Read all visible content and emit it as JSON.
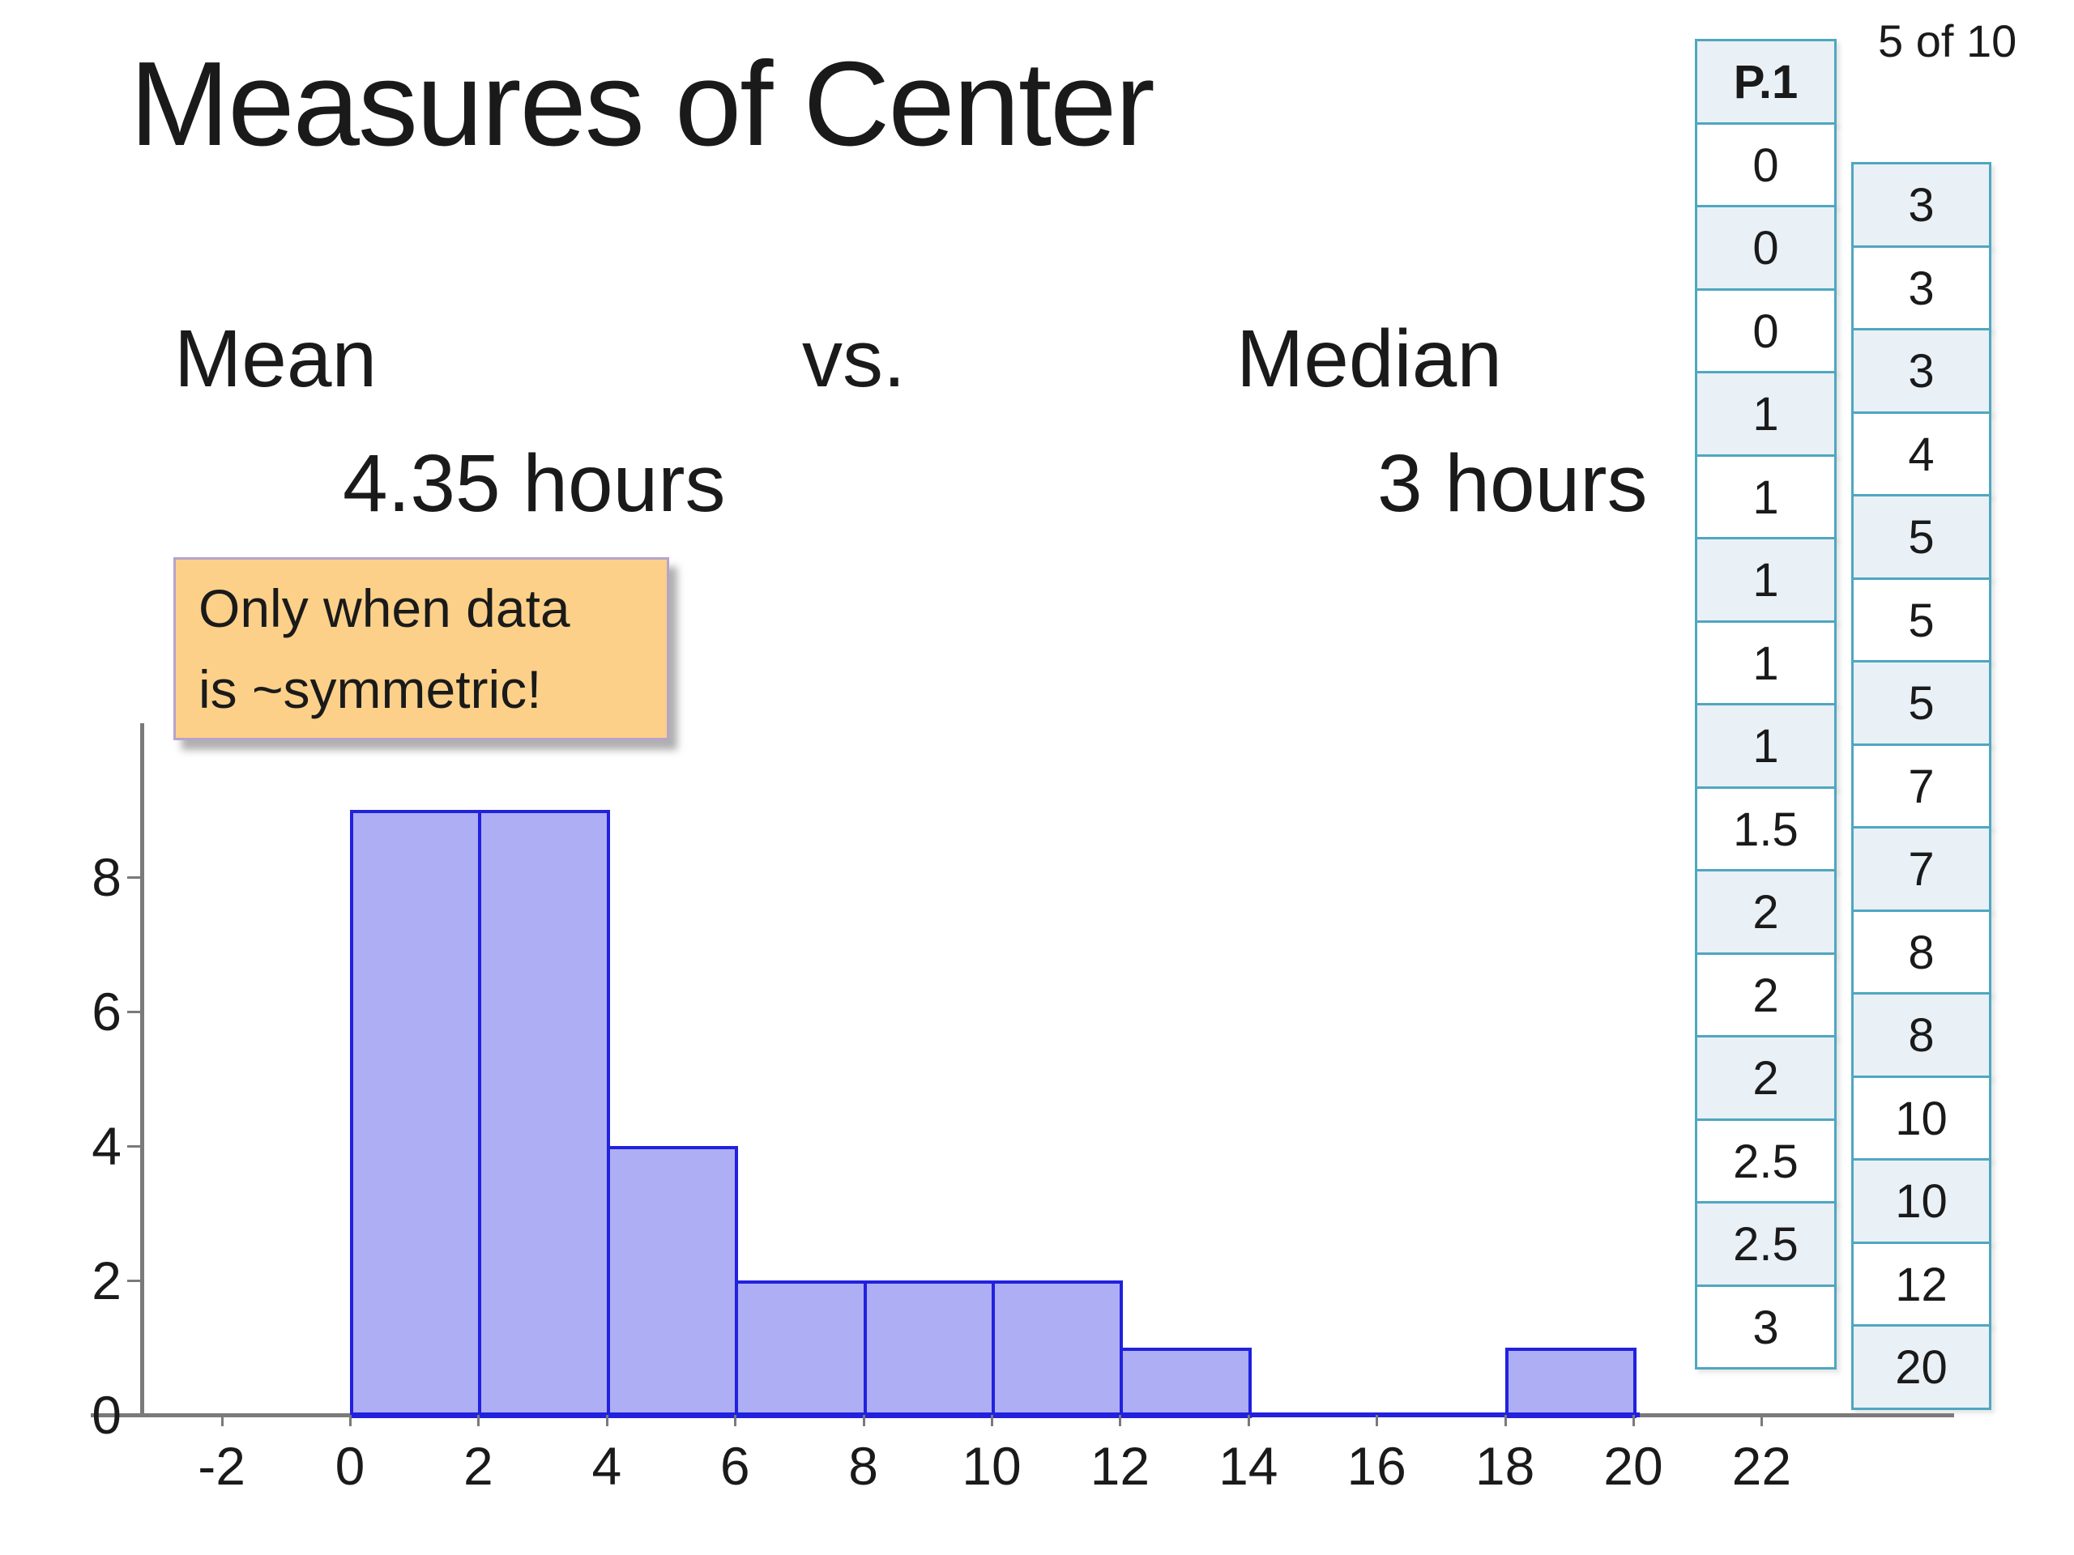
{
  "slide": {
    "title": "Measures of Center",
    "page_indicator": "5 of 10"
  },
  "comparison": {
    "mean_label": "Mean",
    "vs_label": "vs.",
    "median_label": "Median",
    "mean_value": "4.35 hours",
    "median_value": "3 hours"
  },
  "callout": {
    "line1": "Only when data",
    "line2": "is ~symmetric!"
  },
  "data_tables": {
    "p1": {
      "header": "P.1",
      "values": [
        "0",
        "0",
        "0",
        "1",
        "1",
        "1",
        "1",
        "1",
        "1.5",
        "2",
        "2",
        "2",
        "2.5",
        "2.5",
        "3"
      ]
    },
    "sorted_upper": {
      "values": [
        "3",
        "3",
        "3",
        "4",
        "5",
        "5",
        "5",
        "7",
        "7",
        "8",
        "8",
        "10",
        "10",
        "12",
        "20"
      ]
    }
  },
  "colors": {
    "bar_fill": "#aeaef5",
    "bar_border": "#2121de",
    "axis": "#7a7a7a",
    "table_border": "#4fa7c0",
    "table_alt": "#e9f0f6",
    "callout_bg": "#fcd089",
    "callout_border": "#b6a3cc"
  },
  "chart_data": {
    "type": "bar",
    "subtype": "histogram",
    "title": "",
    "xlabel": "",
    "ylabel": "",
    "bin_width": 2,
    "bins": [
      {
        "start": 0,
        "end": 2,
        "count": 9
      },
      {
        "start": 2,
        "end": 4,
        "count": 9
      },
      {
        "start": 4,
        "end": 6,
        "count": 4
      },
      {
        "start": 6,
        "end": 8,
        "count": 2
      },
      {
        "start": 8,
        "end": 10,
        "count": 2
      },
      {
        "start": 10,
        "end": 12,
        "count": 2
      },
      {
        "start": 12,
        "end": 14,
        "count": 1
      },
      {
        "start": 14,
        "end": 16,
        "count": 0
      },
      {
        "start": 16,
        "end": 18,
        "count": 0
      },
      {
        "start": 18,
        "end": 20,
        "count": 1
      }
    ],
    "x_ticks": [
      -2,
      0,
      2,
      4,
      6,
      8,
      10,
      12,
      14,
      16,
      18,
      20,
      22
    ],
    "y_ticks": [
      0,
      2,
      4,
      6,
      8
    ],
    "xlim": [
      -3.5,
      25
    ],
    "ylim": [
      0,
      10.3
    ],
    "grid": false,
    "legend": false
  }
}
